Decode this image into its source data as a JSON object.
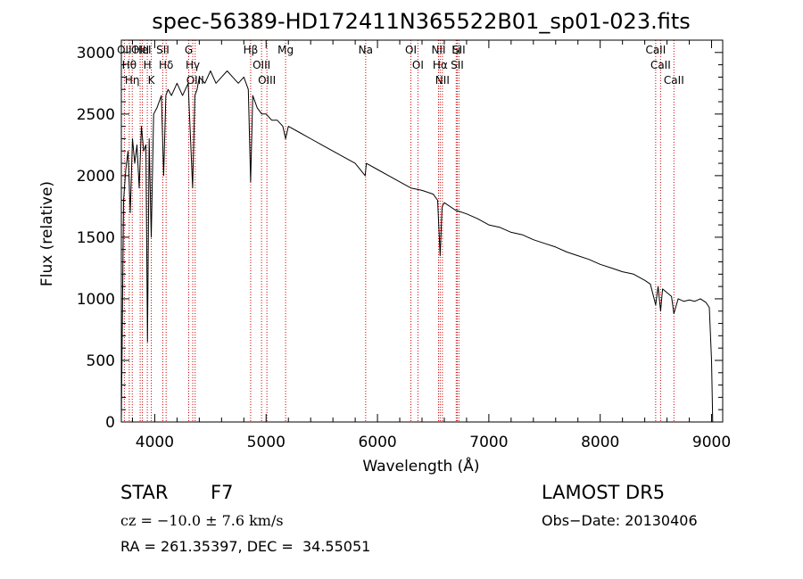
{
  "chart_data": {
    "type": "line",
    "title": "spec-56389-HD172411N365522B01_sp01-023.fits",
    "xlabel": "Wavelength (Å)",
    "ylabel": "Flux (relative)",
    "xlim": [
      3700,
      9100
    ],
    "ylim": [
      0,
      3100
    ],
    "xticks": [
      4000,
      5000,
      6000,
      7000,
      8000,
      9000
    ],
    "yticks": [
      0,
      500,
      1000,
      1500,
      2000,
      2500,
      3000
    ],
    "grid": false,
    "series": [
      {
        "color": "#000000",
        "x": [
          3700,
          3720,
          3740,
          3760,
          3780,
          3800,
          3820,
          3840,
          3860,
          3880,
          3900,
          3920,
          3935,
          3950,
          3968,
          3990,
          4020,
          4060,
          4080,
          4100,
          4120,
          4150,
          4200,
          4250,
          4300,
          4340,
          4360,
          4380,
          4400,
          4450,
          4500,
          4550,
          4600,
          4650,
          4700,
          4750,
          4800,
          4840,
          4861,
          4880,
          4920,
          4960,
          5000,
          5050,
          5100,
          5150,
          5175,
          5200,
          5300,
          5400,
          5500,
          5600,
          5700,
          5800,
          5890,
          5900,
          6000,
          6100,
          6200,
          6300,
          6400,
          6500,
          6540,
          6563,
          6580,
          6600,
          6700,
          6800,
          6900,
          7000,
          7100,
          7200,
          7300,
          7400,
          7500,
          7600,
          7700,
          7800,
          7900,
          8000,
          8100,
          8200,
          8300,
          8400,
          8450,
          8498,
          8520,
          8542,
          8560,
          8600,
          8640,
          8662,
          8700,
          8750,
          8800,
          8850,
          8900,
          8950,
          8980,
          9000,
          9010
        ],
        "y": [
          0,
          1800,
          2050,
          2200,
          1700,
          2300,
          2100,
          2250,
          1900,
          2400,
          2200,
          2250,
          650,
          2300,
          1500,
          2500,
          2550,
          2650,
          2000,
          2650,
          2700,
          2650,
          2750,
          2650,
          2750,
          1900,
          2650,
          2700,
          2800,
          2750,
          2850,
          2750,
          2800,
          2850,
          2800,
          2750,
          2800,
          2700,
          1950,
          2650,
          2550,
          2500,
          2500,
          2450,
          2450,
          2400,
          2300,
          2400,
          2350,
          2300,
          2250,
          2200,
          2150,
          2100,
          2000,
          2100,
          2050,
          2000,
          1950,
          1900,
          1880,
          1850,
          1800,
          1350,
          1750,
          1780,
          1720,
          1690,
          1650,
          1600,
          1580,
          1540,
          1520,
          1480,
          1450,
          1420,
          1380,
          1350,
          1320,
          1280,
          1250,
          1220,
          1200,
          1150,
          1120,
          950,
          1100,
          900,
          1080,
          1050,
          1020,
          880,
          1000,
          980,
          990,
          980,
          1000,
          970,
          930,
          500,
          0
        ]
      }
    ],
    "lines": [
      {
        "label": "OII",
        "wavelength": 3727
      },
      {
        "label": "Hθ",
        "wavelength": 3771
      },
      {
        "label": "Hη",
        "wavelength": 3798
      },
      {
        "label": "OIII",
        "wavelength": 3869
      },
      {
        "label": "HeI",
        "wavelength": 3889
      },
      {
        "label": "H",
        "wavelength": 3933
      },
      {
        "label": "K",
        "wavelength": 3969
      },
      {
        "label": "SII",
        "wavelength": 4072
      },
      {
        "label": "Hδ",
        "wavelength": 4102
      },
      {
        "label": "G",
        "wavelength": 4305
      },
      {
        "label": "Hγ",
        "wavelength": 4341
      },
      {
        "label": "OIII",
        "wavelength": 4363
      },
      {
        "label": "Hβ",
        "wavelength": 4861
      },
      {
        "label": "OIII",
        "wavelength": 4959
      },
      {
        "label": "OIII",
        "wavelength": 5007
      },
      {
        "label": "Mg",
        "wavelength": 5175
      },
      {
        "label": "Na",
        "wavelength": 5894
      },
      {
        "label": "OI",
        "wavelength": 6300
      },
      {
        "label": "OI",
        "wavelength": 6363
      },
      {
        "label": "NII",
        "wavelength": 6548
      },
      {
        "label": "Hα",
        "wavelength": 6563
      },
      {
        "label": "NII",
        "wavelength": 6583
      },
      {
        "label": "Li",
        "wavelength": 6707
      },
      {
        "label": "SII",
        "wavelength": 6716
      },
      {
        "label": "SII",
        "wavelength": 6731
      },
      {
        "label": "CaII",
        "wavelength": 8498
      },
      {
        "label": "CaII",
        "wavelength": 8542
      },
      {
        "label": "CaII",
        "wavelength": 8662
      }
    ],
    "line_color": "#cc0000"
  },
  "info": {
    "object_class": "STAR",
    "subclass": "F7",
    "survey": "LAMOST DR5",
    "redshift": "cz = −10.0 ± 7.6 km/s",
    "obs_date": "Obs−Date: 20130406",
    "coords": "RA = 261.35397, DEC =  34.55051"
  }
}
